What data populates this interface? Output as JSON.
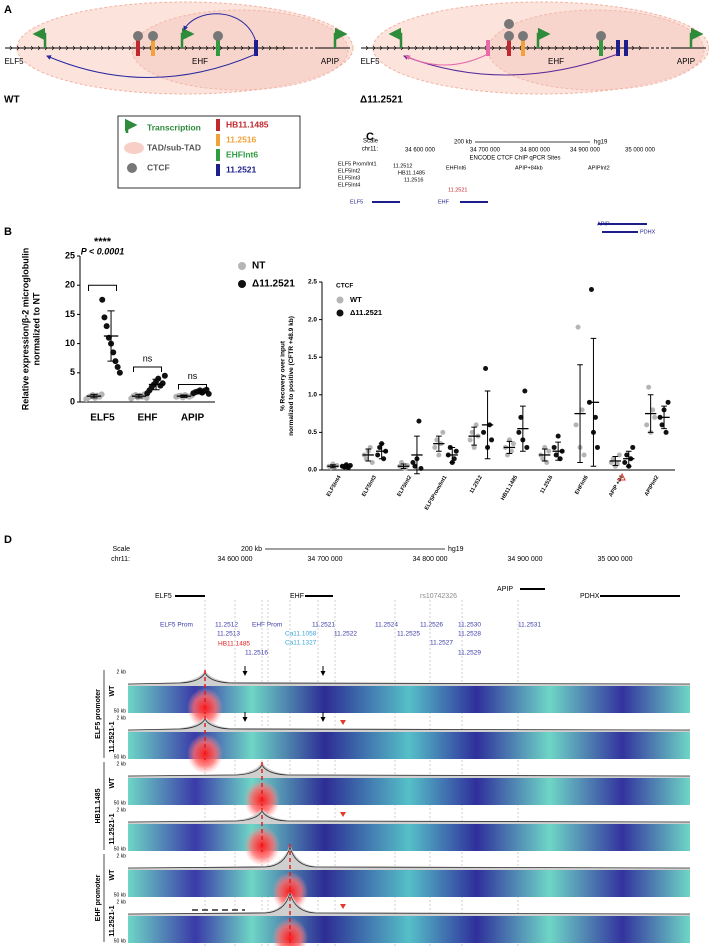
{
  "panel_labels": [
    "A",
    "B",
    "C",
    "D"
  ],
  "panel_a": {
    "wt": {
      "label": "WT",
      "genes": [
        "ELF5",
        "EHF",
        "APIP"
      ]
    },
    "del": {
      "label": "Δ11.2521",
      "genes": [
        "ELF5",
        "EHF",
        "APIP"
      ]
    },
    "legend": [
      {
        "label": "Transcription",
        "color": "#2e8b3a"
      },
      {
        "label": "TAD/sub-TAD",
        "color": "#f7cfc6"
      },
      {
        "label": "CTCF",
        "color": "#777777"
      },
      {
        "label": "HB11.1485",
        "color": "#c0282d"
      },
      {
        "label": "11.2516",
        "color": "#f2a23a"
      },
      {
        "label": "EHFInt6",
        "color": "#2e9c3f"
      },
      {
        "label": "11.2521",
        "color": "#1d1d8c"
      }
    ]
  },
  "chart_data": [
    {
      "type": "dotplot",
      "y_label": [
        "Relative expression/β-2 microglobulin",
        "normalized to NT"
      ],
      "categories": [
        "ELF5",
        "EHF",
        "APIP"
      ],
      "ylim": [
        0,
        25
      ],
      "yticks": [
        0,
        5,
        10,
        15,
        20,
        25
      ],
      "series": [
        {
          "name": "NT",
          "color": "#b5b5b5",
          "values": [
            [
              0.5,
              0.8,
              1,
              1.2,
              0.7,
              1.1,
              0.9,
              1.3
            ],
            [
              0.6,
              1,
              1.2,
              0.8,
              1.1,
              0.9,
              1.3,
              0.7
            ],
            [
              0.9,
              1,
              1.1,
              0.8,
              1.2,
              1,
              0.9,
              1.1
            ]
          ],
          "means": [
            1,
            1,
            1
          ],
          "sd": [
            0.3,
            0.3,
            0.2
          ]
        },
        {
          "name": "Δ11.2521",
          "color": "#111111",
          "values": [
            [
              17.5,
              14.5,
              13,
              11,
              10,
              8.5,
              7,
              6,
              5
            ],
            [
              1.5,
              2,
              2.5,
              3,
              3.5,
              4,
              2.8,
              3.2,
              4.5
            ],
            [
              1.5,
              1.7,
              1.8,
              2,
              1.6,
              1.9,
              2.1,
              1.4
            ]
          ],
          "means": [
            11.3,
            3,
            1.7
          ],
          "sd": [
            4.3,
            0.9,
            0.3
          ]
        }
      ],
      "annotations": [
        "****",
        "P < 0.0001",
        "ns",
        "ns"
      ]
    },
    {
      "type": "dotplot",
      "legend_title": "CTCF",
      "y_label": [
        "% Recovery over input",
        "normalized to positive (CFTR +48.9 kb)"
      ],
      "categories": [
        "ELF5Int4",
        "ELF5Int3",
        "ELF5Int2",
        "ELF5Prom/Int1",
        "11.2512",
        "HB11.1485",
        "11.2516",
        "EHFInt6",
        "APIP +84",
        "APIPInt2"
      ],
      "ylim": [
        0,
        2.5
      ],
      "yticks": [
        {
          "value": 0,
          "label": "0.0"
        },
        0.5,
        {
          "value": 1,
          "label": "1.0"
        },
        1.5,
        {
          "value": 2,
          "label": "2.0"
        },
        2.5
      ],
      "series": [
        {
          "name": "WT",
          "color": "#b5b5b5",
          "values": [
            [
              0.05,
              0.03,
              0.08,
              0.04,
              0.06
            ],
            [
              0.2,
              0.15,
              0.25,
              0.3,
              0.1
            ],
            [
              0.05,
              0.1,
              0.03,
              0.02,
              0.06
            ],
            [
              0.3,
              0.4,
              0.2,
              0.35,
              0.5
            ],
            [
              0.4,
              0.5,
              0.3,
              0.6,
              0.45
            ],
            [
              0.3,
              0.2,
              0.4,
              0.25,
              0.35
            ],
            [
              0.2,
              0.15,
              0.3,
              0.1,
              0.25
            ],
            [
              0.6,
              1.9,
              0.3,
              0.8,
              0.2
            ],
            [
              0.1,
              0.15,
              0.05,
              0.08,
              0.2
            ],
            [
              0.6,
              1.1,
              0.5,
              0.8,
              0.7
            ]
          ],
          "means": [
            0.05,
            0.2,
            0.05,
            0.35,
            0.45,
            0.3,
            0.2,
            0.75,
            0.12,
            0.75
          ],
          "sd": [
            0.02,
            0.08,
            0.03,
            0.1,
            0.12,
            0.08,
            0.08,
            0.65,
            0.06,
            0.25
          ]
        },
        {
          "name": "Δ11.2521",
          "color": "#111111",
          "values": [
            [
              0.05,
              0.04,
              0.07,
              0.03,
              0.06
            ],
            [
              0.2,
              0.3,
              0.35,
              0.15,
              0.25
            ],
            [
              0.1,
              0.05,
              0.15,
              0.65,
              0.02
            ],
            [
              0.2,
              0.3,
              0.1,
              0.15,
              0.25
            ],
            [
              0.5,
              1.35,
              0.3,
              0.6,
              0.4
            ],
            [
              0.5,
              0.7,
              0.4,
              1.05,
              0.3
            ],
            [
              0.3,
              0.2,
              0.45,
              0.15,
              0.25
            ],
            [
              0.9,
              2.4,
              0.5,
              0.7,
              0.3
            ],
            [
              0.1,
              0.2,
              0.05,
              0.15,
              0.3
            ],
            [
              0.7,
              0.6,
              0.8,
              0.5,
              0.9
            ]
          ],
          "means": [
            0.05,
            0.25,
            0.2,
            0.2,
            0.6,
            0.55,
            0.25,
            0.9,
            0.15,
            0.7
          ],
          "sd": [
            0.02,
            0.1,
            0.25,
            0.1,
            0.45,
            0.3,
            0.12,
            0.85,
            0.1,
            0.15
          ]
        }
      ]
    }
  ],
  "panel_c_browser": {
    "scale": "Scale",
    "chrom": "chr11:",
    "scale_bar": "200 kb",
    "assembly": "hg19",
    "coords": [
      "34 600 000",
      "34 700 000",
      "34 800 000",
      "34 900 000",
      "35 000 000"
    ],
    "track": "ENCODE CTCF ChIP qPCR Sites",
    "sites": [
      "ELF5 Prom/Int1",
      "ELF5Int2",
      "ELF5Int3",
      "ELF5Int4",
      "11.2512",
      "HB11.1485",
      "11.2516",
      "EHFInt6",
      "APIP+84kb",
      "APIPInt2",
      "11.2521"
    ],
    "genes": [
      "ELF5",
      "EHF",
      "APIP",
      "PDHX"
    ]
  },
  "panel_d": {
    "scale": "Scale",
    "chrom": "chr11:",
    "scale_bar": "200 kb",
    "assembly": "hg19",
    "coords": [
      "34 600 000",
      "34 700 000",
      "34 800 000",
      "34 900 000",
      "35 000 000"
    ],
    "genes": [
      "ELF5",
      "EHF",
      "APIP",
      "PDHX",
      "rs10742326"
    ],
    "sites": [
      "ELF5 Prom",
      "11.2512",
      "11.2513",
      "HB11.1485",
      "11.2516",
      "EHF Prom",
      "Ca11.1058",
      "Ca11.1327",
      "11.2521",
      "11.2522",
      "11.2524",
      "11.2525",
      "11.2526",
      "11.2527",
      "11.2530",
      "11.2528",
      "11.2529",
      "11.2531"
    ],
    "scale_labels": [
      "2 kb",
      "50 kb"
    ],
    "groups": [
      {
        "name": "ELF5 promoter",
        "tracks": [
          "WT",
          "11.2521-1"
        ]
      },
      {
        "name": "HB11.1485",
        "tracks": [
          "WT",
          "11.2521-1"
        ]
      },
      {
        "name": "EHF promoter",
        "tracks": [
          "WT",
          "11.2521-1"
        ]
      }
    ]
  }
}
